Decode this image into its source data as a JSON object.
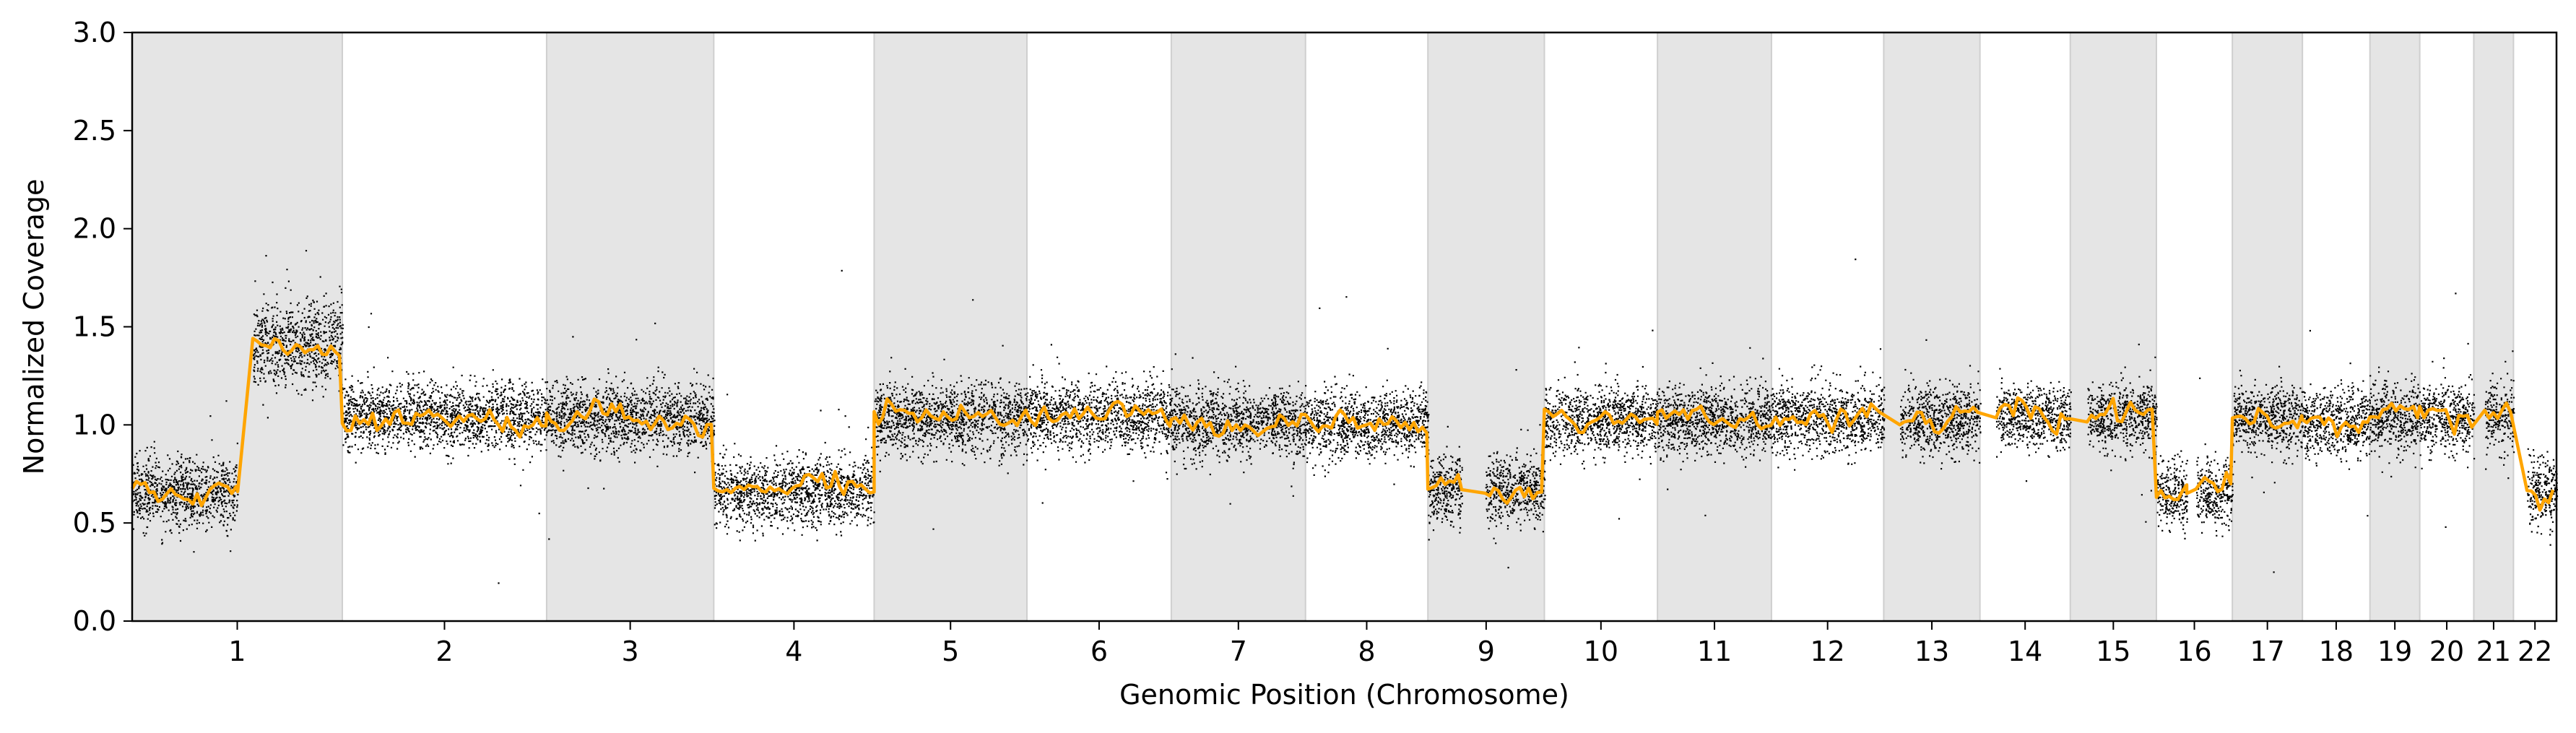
{
  "chart_data": {
    "type": "scatter",
    "title": "",
    "xlabel": "Genomic Position (Chromosome)",
    "ylabel": "Normalized Coverage",
    "ylim": [
      0.0,
      3.0
    ],
    "yticks": [
      0.0,
      0.5,
      1.0,
      1.5,
      2.0,
      2.5,
      3.0
    ],
    "ytick_labels": [
      "0.0",
      "0.5",
      "1.0",
      "1.5",
      "2.0",
      "2.5",
      "3.0"
    ],
    "x_units": "Mb",
    "chromosomes": [
      {
        "label": "1",
        "length": 249,
        "shaded": true,
        "segments": [
          {
            "start": 0,
            "end": 125,
            "value": 0.66
          },
          {
            "start": 125,
            "end": 143,
            "gap": true
          },
          {
            "start": 143,
            "end": 249,
            "value": 1.42
          }
        ]
      },
      {
        "label": "2",
        "length": 242,
        "shaded": false,
        "segments": [
          {
            "start": 0,
            "end": 242,
            "value": 1.05
          }
        ]
      },
      {
        "label": "3",
        "length": 198,
        "shaded": true,
        "segments": [
          {
            "start": 0,
            "end": 198,
            "value": 1.04
          }
        ]
      },
      {
        "label": "4",
        "length": 190,
        "shaded": false,
        "segments": [
          {
            "start": 0,
            "end": 190,
            "value": 0.66
          }
        ]
      },
      {
        "label": "5",
        "length": 181,
        "shaded": true,
        "segments": [
          {
            "start": 0,
            "end": 181,
            "value": 1.04
          }
        ]
      },
      {
        "label": "6",
        "length": 171,
        "shaded": false,
        "segments": [
          {
            "start": 0,
            "end": 171,
            "value": 1.05
          }
        ]
      },
      {
        "label": "7",
        "length": 159,
        "shaded": true,
        "segments": [
          {
            "start": 0,
            "end": 159,
            "value": 1.02
          }
        ]
      },
      {
        "label": "8",
        "length": 145,
        "shaded": false,
        "segments": [
          {
            "start": 0,
            "end": 145,
            "value": 1.01
          }
        ]
      },
      {
        "label": "9",
        "length": 138,
        "shaded": true,
        "segments": [
          {
            "start": 0,
            "end": 40,
            "value": 0.67
          },
          {
            "start": 40,
            "end": 68,
            "gap": true
          },
          {
            "start": 68,
            "end": 138,
            "value": 0.67
          }
        ]
      },
      {
        "label": "10",
        "length": 134,
        "shaded": false,
        "segments": [
          {
            "start": 0,
            "end": 134,
            "value": 1.03
          }
        ]
      },
      {
        "label": "11",
        "length": 135,
        "shaded": true,
        "segments": [
          {
            "start": 0,
            "end": 135,
            "value": 1.03
          }
        ]
      },
      {
        "label": "12",
        "length": 133,
        "shaded": false,
        "segments": [
          {
            "start": 0,
            "end": 133,
            "value": 1.04
          }
        ]
      },
      {
        "label": "13",
        "length": 114,
        "shaded": true,
        "segments": [
          {
            "start": 0,
            "end": 19,
            "gap": true
          },
          {
            "start": 19,
            "end": 114,
            "value": 1.03
          }
        ]
      },
      {
        "label": "14",
        "length": 107,
        "shaded": false,
        "segments": [
          {
            "start": 0,
            "end": 19,
            "gap": true
          },
          {
            "start": 19,
            "end": 107,
            "value": 1.04
          }
        ]
      },
      {
        "label": "15",
        "length": 102,
        "shaded": true,
        "segments": [
          {
            "start": 0,
            "end": 20,
            "gap": true
          },
          {
            "start": 20,
            "end": 102,
            "value": 1.05
          }
        ]
      },
      {
        "label": "16",
        "length": 90,
        "shaded": false,
        "segments": [
          {
            "start": 0,
            "end": 36,
            "value": 0.65
          },
          {
            "start": 36,
            "end": 47,
            "gap": true
          },
          {
            "start": 47,
            "end": 90,
            "value": 0.66
          }
        ]
      },
      {
        "label": "17",
        "length": 83,
        "shaded": true,
        "segments": [
          {
            "start": 0,
            "end": 83,
            "value": 1.04
          }
        ]
      },
      {
        "label": "18",
        "length": 80,
        "shaded": false,
        "segments": [
          {
            "start": 0,
            "end": 80,
            "value": 1.02
          }
        ]
      },
      {
        "label": "19",
        "length": 59,
        "shaded": true,
        "segments": [
          {
            "start": 0,
            "end": 59,
            "value": 1.04
          }
        ]
      },
      {
        "label": "20",
        "length": 64,
        "shaded": false,
        "segments": [
          {
            "start": 0,
            "end": 64,
            "value": 1.04
          }
        ]
      },
      {
        "label": "21",
        "length": 47,
        "shaded": true,
        "segments": [
          {
            "start": 0,
            "end": 13,
            "gap": true
          },
          {
            "start": 13,
            "end": 47,
            "value": 1.05
          }
        ]
      },
      {
        "label": "22",
        "length": 51,
        "shaded": false,
        "segments": [
          {
            "start": 0,
            "end": 16,
            "gap": true
          },
          {
            "start": 16,
            "end": 51,
            "value": 0.67
          }
        ]
      }
    ],
    "series": [
      {
        "name": "bins",
        "kind": "scatter",
        "color": "#000000",
        "noise_sd": 0.085
      },
      {
        "name": "smoothed",
        "kind": "line",
        "color": "#ffa500"
      }
    ],
    "colors": {
      "shade": "#e5e5e5",
      "points": "#000000",
      "line": "#ffa500",
      "axis": "#000000"
    }
  }
}
